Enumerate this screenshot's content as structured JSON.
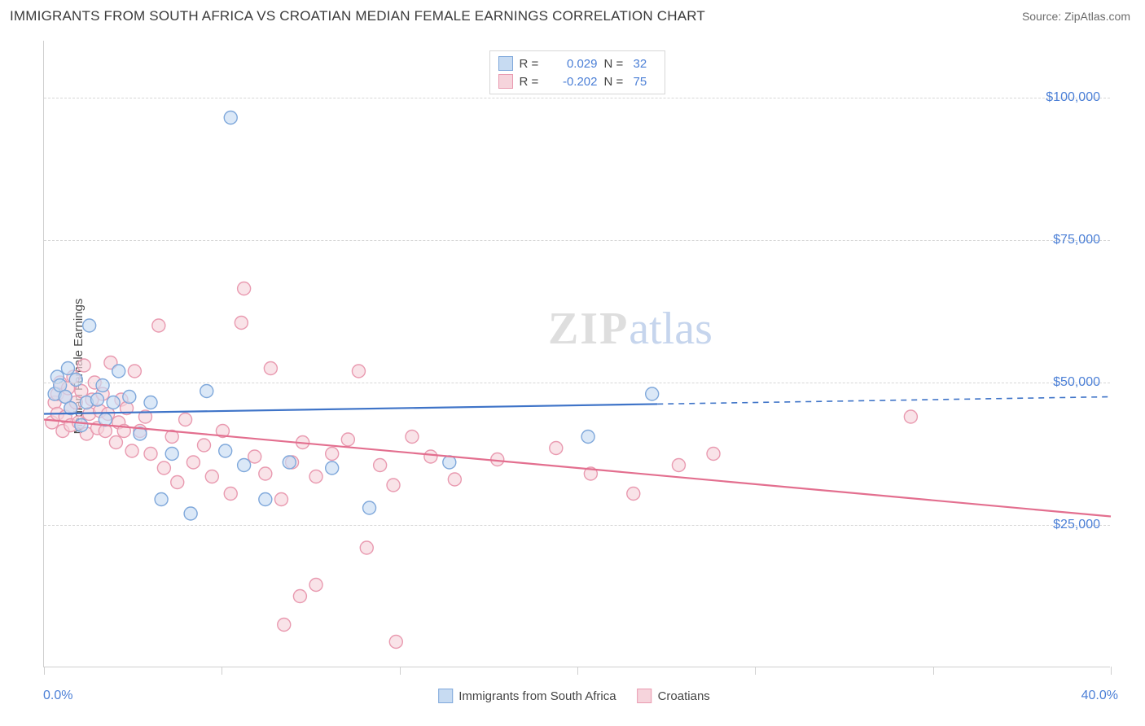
{
  "title": "IMMIGRANTS FROM SOUTH AFRICA VS CROATIAN MEDIAN FEMALE EARNINGS CORRELATION CHART",
  "source": "Source: ZipAtlas.com",
  "y_label": "Median Female Earnings",
  "watermark_a": "ZIP",
  "watermark_b": "atlas",
  "chart": {
    "type": "scatter-with-regression",
    "xlim": [
      0,
      40
    ],
    "ylim": [
      0,
      110000
    ],
    "x_min_label": "0.0%",
    "x_max_label": "40.0%",
    "y_ticks": [
      25000,
      50000,
      75000,
      100000
    ],
    "y_tick_labels": [
      "$25,000",
      "$50,000",
      "$75,000",
      "$100,000"
    ],
    "x_tick_positions": [
      0,
      6.67,
      13.33,
      20,
      26.67,
      33.33,
      40
    ],
    "background_color": "#ffffff",
    "grid_color": "#d7d7d7",
    "axis_color": "#cfcfcf",
    "tick_label_color": "#4b7fd6",
    "marker_radius": 8,
    "marker_stroke_width": 1.4,
    "line_width": 2.2,
    "series": [
      {
        "name": "Immigrants from South Africa",
        "color_fill": "#c7dbf2",
        "color_stroke": "#7fa8db",
        "line_color": "#3f74c8",
        "R": "0.029",
        "N": "32",
        "reg_y_start": 44500,
        "reg_y_end": 47500,
        "reg_x_solid_end": 23,
        "points": [
          [
            0.4,
            48000
          ],
          [
            0.5,
            51000
          ],
          [
            0.6,
            49500
          ],
          [
            0.8,
            47500
          ],
          [
            0.9,
            52500
          ],
          [
            1.0,
            45500
          ],
          [
            1.2,
            50500
          ],
          [
            1.4,
            42500
          ],
          [
            1.6,
            46500
          ],
          [
            1.7,
            60000
          ],
          [
            2.0,
            47000
          ],
          [
            2.2,
            49500
          ],
          [
            2.3,
            43500
          ],
          [
            2.6,
            46500
          ],
          [
            2.8,
            52000
          ],
          [
            3.2,
            47500
          ],
          [
            3.6,
            41000
          ],
          [
            4.0,
            46500
          ],
          [
            4.4,
            29500
          ],
          [
            4.8,
            37500
          ],
          [
            5.5,
            27000
          ],
          [
            6.1,
            48500
          ],
          [
            6.8,
            38000
          ],
          [
            7.0,
            96500
          ],
          [
            7.5,
            35500
          ],
          [
            8.3,
            29500
          ],
          [
            9.2,
            36000
          ],
          [
            10.8,
            35000
          ],
          [
            12.2,
            28000
          ],
          [
            15.2,
            36000
          ],
          [
            20.4,
            40500
          ],
          [
            22.8,
            48000
          ]
        ]
      },
      {
        "name": "Croatians",
        "color_fill": "#f6d4dc",
        "color_stroke": "#e99ab0",
        "line_color": "#e36f8f",
        "R": "-0.202",
        "N": "75",
        "reg_y_start": 43500,
        "reg_y_end": 26500,
        "reg_x_solid_end": 40,
        "points": [
          [
            0.3,
            43000
          ],
          [
            0.4,
            46500
          ],
          [
            0.5,
            48000
          ],
          [
            0.5,
            44500
          ],
          [
            0.6,
            50000
          ],
          [
            0.7,
            41500
          ],
          [
            0.8,
            47500
          ],
          [
            0.8,
            44000
          ],
          [
            0.9,
            49000
          ],
          [
            1.0,
            45500
          ],
          [
            1.0,
            42500
          ],
          [
            1.1,
            51000
          ],
          [
            1.2,
            46500
          ],
          [
            1.3,
            43000
          ],
          [
            1.4,
            48500
          ],
          [
            1.5,
            53000
          ],
          [
            1.6,
            41000
          ],
          [
            1.7,
            44500
          ],
          [
            1.8,
            47000
          ],
          [
            1.9,
            50000
          ],
          [
            2.0,
            42000
          ],
          [
            2.1,
            45000
          ],
          [
            2.2,
            48000
          ],
          [
            2.3,
            41500
          ],
          [
            2.4,
            44500
          ],
          [
            2.5,
            53500
          ],
          [
            2.7,
            39500
          ],
          [
            2.8,
            43000
          ],
          [
            2.9,
            47000
          ],
          [
            3.0,
            41500
          ],
          [
            3.1,
            45500
          ],
          [
            3.3,
            38000
          ],
          [
            3.4,
            52000
          ],
          [
            3.6,
            41500
          ],
          [
            3.8,
            44000
          ],
          [
            4.0,
            37500
          ],
          [
            4.3,
            60000
          ],
          [
            4.5,
            35000
          ],
          [
            4.8,
            40500
          ],
          [
            5.0,
            32500
          ],
          [
            5.3,
            43500
          ],
          [
            5.6,
            36000
          ],
          [
            6.0,
            39000
          ],
          [
            6.3,
            33500
          ],
          [
            6.7,
            41500
          ],
          [
            7.0,
            30500
          ],
          [
            7.4,
            60500
          ],
          [
            7.5,
            66500
          ],
          [
            7.9,
            37000
          ],
          [
            8.3,
            34000
          ],
          [
            8.5,
            52500
          ],
          [
            8.9,
            29500
          ],
          [
            9.3,
            36000
          ],
          [
            9.6,
            12500
          ],
          [
            9.7,
            39500
          ],
          [
            9.0,
            7500
          ],
          [
            10.2,
            33500
          ],
          [
            10.2,
            14500
          ],
          [
            10.8,
            37500
          ],
          [
            11.4,
            40000
          ],
          [
            11.8,
            52000
          ],
          [
            12.1,
            21000
          ],
          [
            12.6,
            35500
          ],
          [
            13.1,
            32000
          ],
          [
            13.2,
            4500
          ],
          [
            13.8,
            40500
          ],
          [
            14.5,
            37000
          ],
          [
            15.4,
            33000
          ],
          [
            17.0,
            36500
          ],
          [
            19.2,
            38500
          ],
          [
            20.5,
            34000
          ],
          [
            22.1,
            30500
          ],
          [
            23.8,
            35500
          ],
          [
            25.1,
            37500
          ],
          [
            32.5,
            44000
          ]
        ]
      }
    ]
  },
  "legend_bottom": [
    {
      "swatch_fill": "#c7dbf2",
      "swatch_stroke": "#7fa8db",
      "label": "Immigrants from South Africa"
    },
    {
      "swatch_fill": "#f6d4dc",
      "swatch_stroke": "#e99ab0",
      "label": "Croatians"
    }
  ]
}
